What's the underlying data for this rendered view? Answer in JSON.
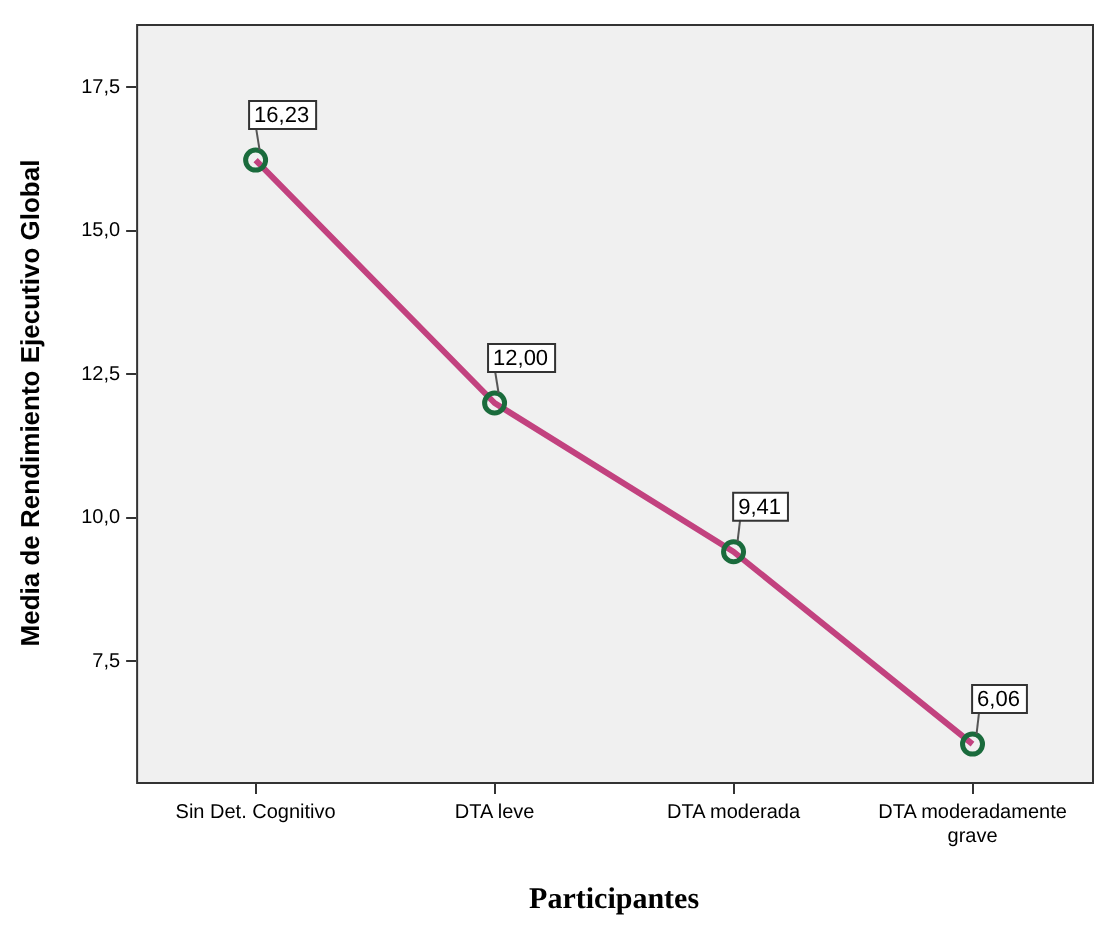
{
  "chart_data": {
    "type": "line",
    "xlabel": "Participantes",
    "ylabel": "Media de Rendimiento Ejecutivo Global",
    "categories": [
      "Sin Det. Cognitivo",
      "DTA leve",
      "DTA moderada",
      "DTA moderadamente grave"
    ],
    "series": [
      {
        "color": "#c2427f",
        "values": [
          16.23,
          12.0,
          9.41,
          6.06
        ],
        "value_labels": [
          "16,23",
          "12,00",
          "9,41",
          "6,06"
        ]
      }
    ],
    "marker": "circle",
    "line_style": "solid",
    "ylim": [
      5.4,
      18.6
    ],
    "yticks": [
      {
        "value": 7.5,
        "label": "7,5"
      },
      {
        "value": 10,
        "label": "10,0"
      },
      {
        "value": 12.5,
        "label": "12,5"
      },
      {
        "value": 15,
        "label": "15,0"
      },
      {
        "value": 17.5,
        "label": "17,5"
      }
    ]
  }
}
